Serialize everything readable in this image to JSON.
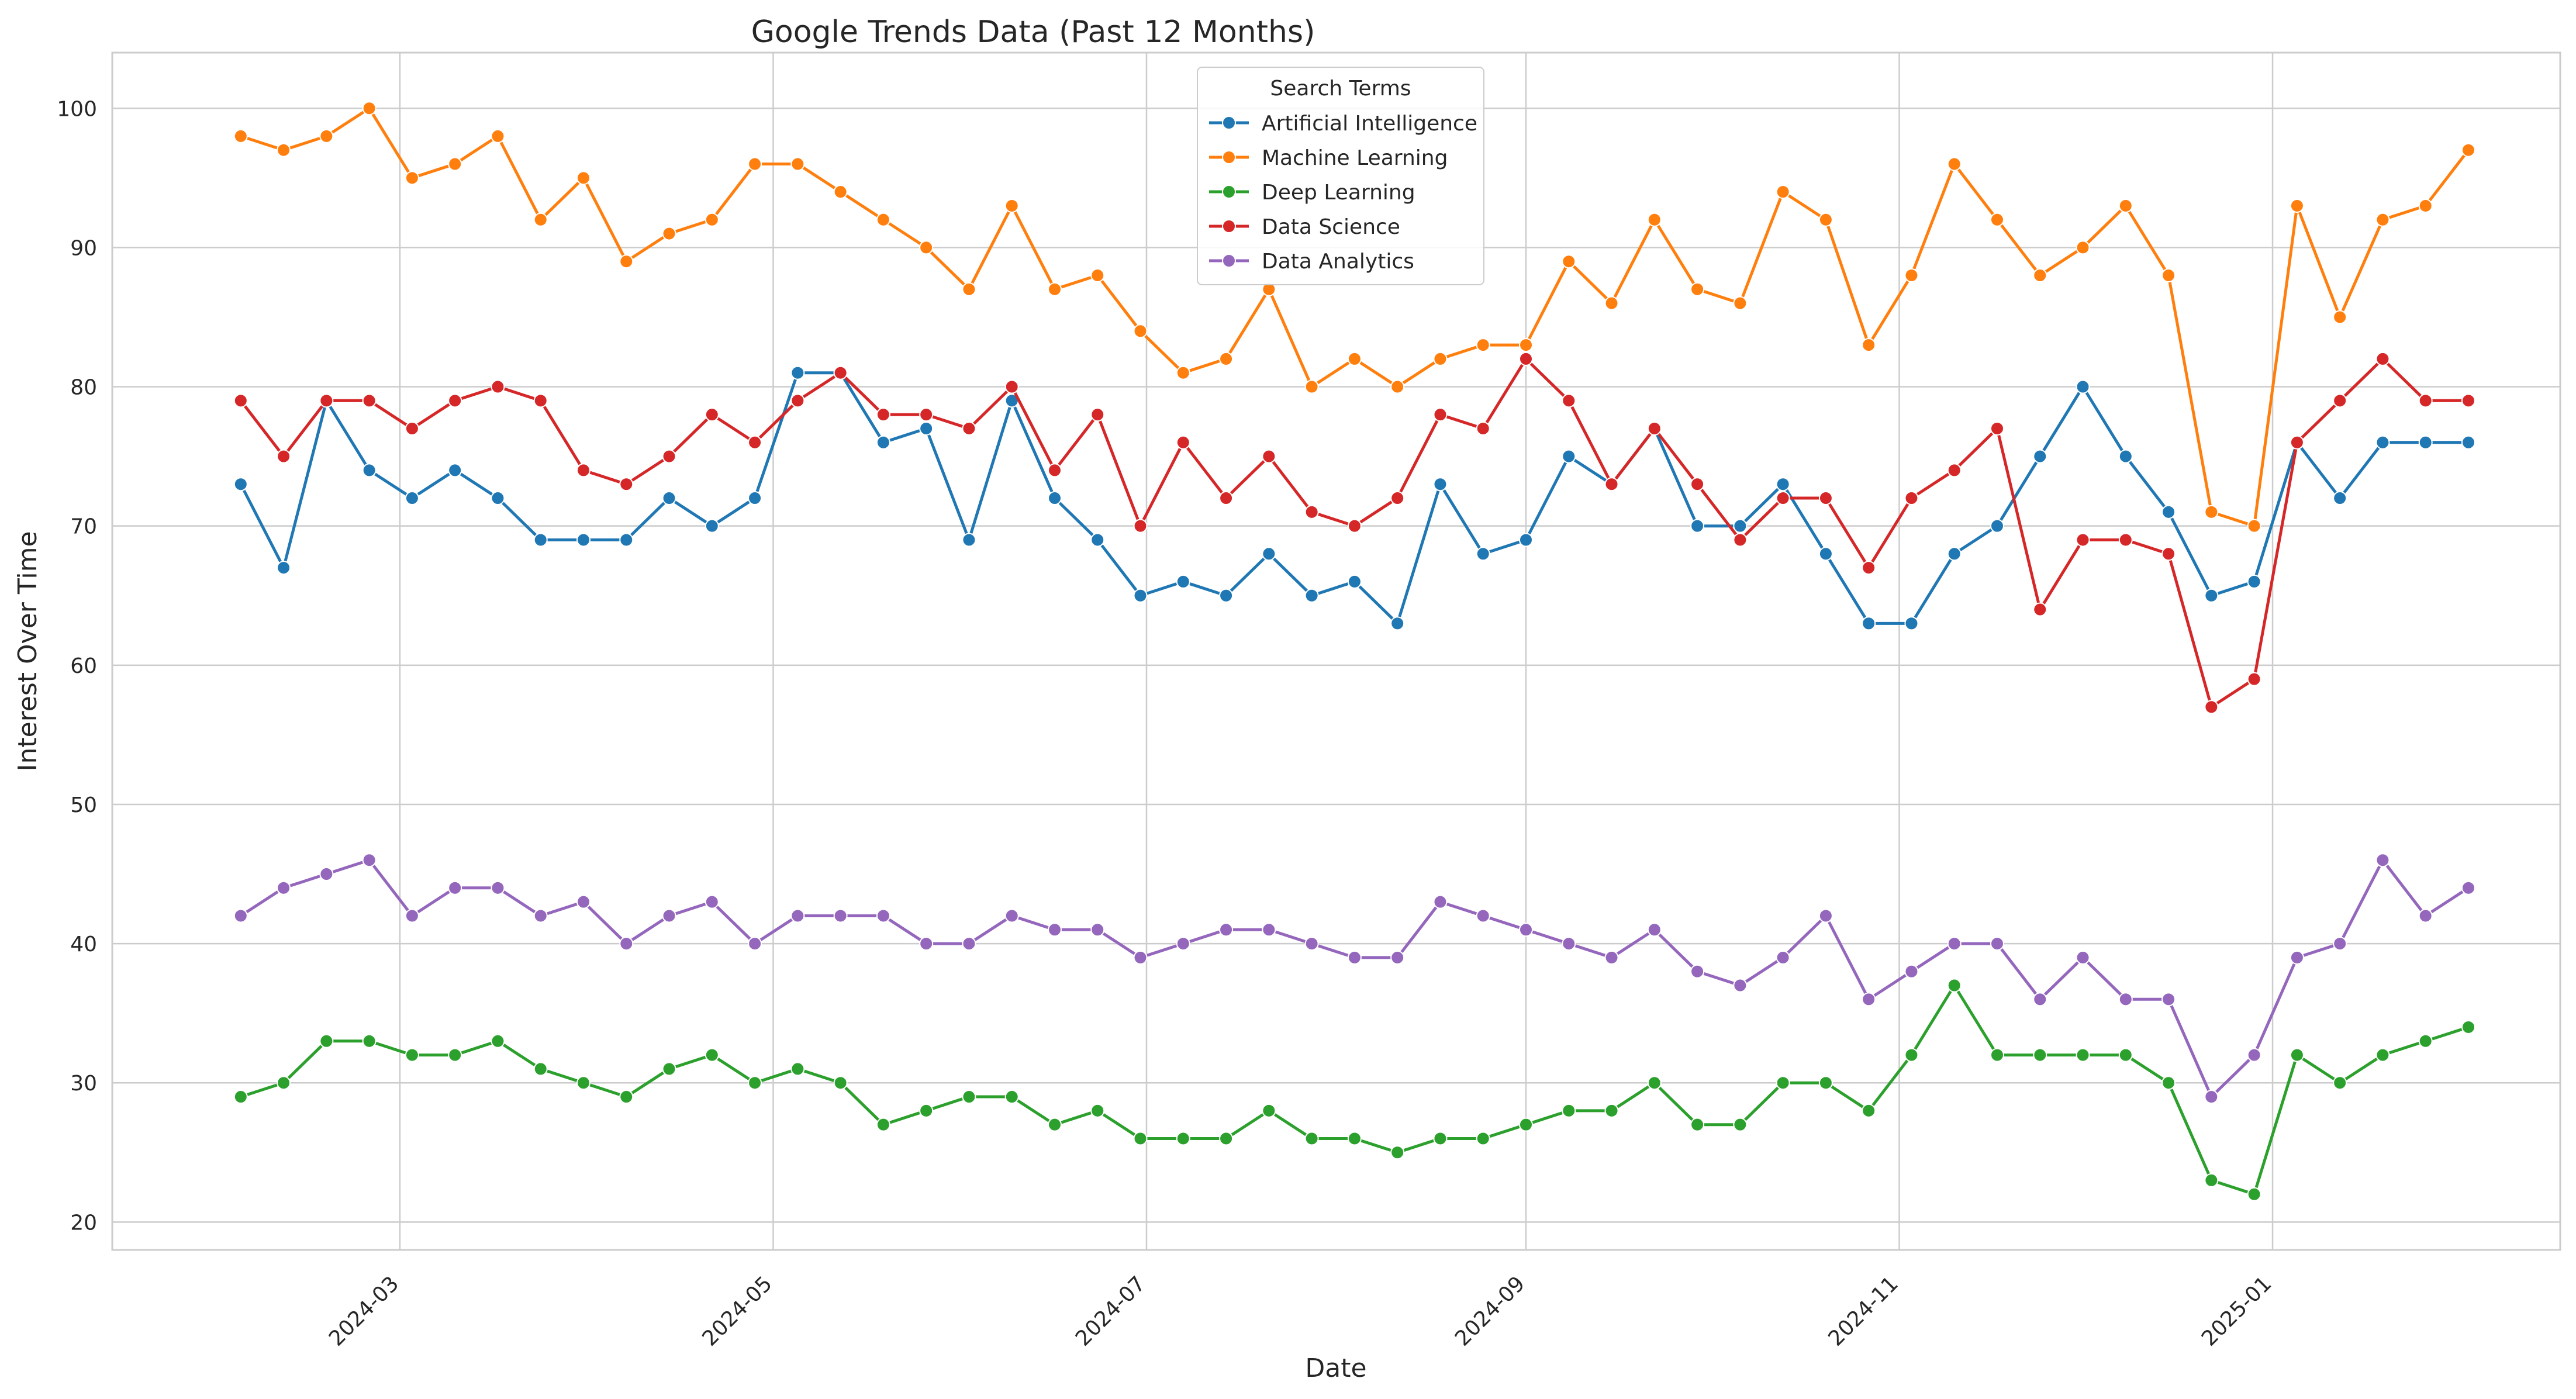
{
  "chart_data": {
    "type": "line",
    "title": "Google Trends Data (Past 12 Months)",
    "xlabel": "Date",
    "ylabel": "Interest Over Time",
    "ylim": [
      18,
      104
    ],
    "xlim": [
      "2024-01-14",
      "2025-02-17"
    ],
    "grid": true,
    "legend": {
      "title": "Search Terms",
      "placement": "top-center"
    },
    "x_ticks": [
      "2024-03-01",
      "2024-05-01",
      "2024-07-01",
      "2024-09-01",
      "2024-11-01",
      "2025-01-01"
    ],
    "x_tick_labels": [
      "2024-03",
      "2024-05",
      "2024-07",
      "2024-09",
      "2024-11",
      "2025-01"
    ],
    "y_ticks": [
      20,
      30,
      40,
      50,
      60,
      70,
      80,
      90,
      100
    ],
    "y_tick_labels": [
      "20",
      "30",
      "40",
      "50",
      "60",
      "70",
      "80",
      "90",
      "100"
    ],
    "x": [
      "2024-02-04",
      "2024-02-11",
      "2024-02-18",
      "2024-02-25",
      "2024-03-03",
      "2024-03-10",
      "2024-03-17",
      "2024-03-24",
      "2024-03-31",
      "2024-04-07",
      "2024-04-14",
      "2024-04-21",
      "2024-04-28",
      "2024-05-05",
      "2024-05-12",
      "2024-05-19",
      "2024-05-26",
      "2024-06-02",
      "2024-06-09",
      "2024-06-16",
      "2024-06-23",
      "2024-06-30",
      "2024-07-07",
      "2024-07-14",
      "2024-07-21",
      "2024-07-28",
      "2024-08-04",
      "2024-08-11",
      "2024-08-18",
      "2024-08-25",
      "2024-09-01",
      "2024-09-08",
      "2024-09-15",
      "2024-09-22",
      "2024-09-29",
      "2024-10-06",
      "2024-10-13",
      "2024-10-20",
      "2024-10-27",
      "2024-11-03",
      "2024-11-10",
      "2024-11-17",
      "2024-11-24",
      "2024-12-01",
      "2024-12-08",
      "2024-12-15",
      "2024-12-22",
      "2024-12-29",
      "2025-01-05",
      "2025-01-12",
      "2025-01-19",
      "2025-01-26",
      "2025-02-02"
    ],
    "series": [
      {
        "name": "Artificial Intelligence",
        "color": "#1f77b4",
        "values": [
          73,
          67,
          79,
          74,
          72,
          74,
          72,
          69,
          69,
          69,
          72,
          70,
          72,
          81,
          81,
          76,
          77,
          69,
          79,
          72,
          69,
          65,
          66,
          65,
          68,
          65,
          66,
          63,
          73,
          68,
          69,
          75,
          73,
          77,
          70,
          70,
          73,
          68,
          63,
          63,
          68,
          70,
          75,
          80,
          75,
          71,
          65,
          66,
          76,
          72,
          76,
          76,
          76
        ]
      },
      {
        "name": "Machine Learning",
        "color": "#ff7f0e",
        "values": [
          98,
          97,
          98,
          100,
          95,
          96,
          98,
          92,
          95,
          89,
          91,
          92,
          96,
          96,
          94,
          92,
          90,
          87,
          93,
          87,
          88,
          84,
          81,
          82,
          87,
          80,
          82,
          80,
          82,
          83,
          83,
          89,
          86,
          92,
          87,
          86,
          94,
          92,
          83,
          88,
          96,
          92,
          88,
          90,
          93,
          88,
          71,
          70,
          93,
          85,
          92,
          93,
          97
        ]
      },
      {
        "name": "Deep Learning",
        "color": "#2ca02c",
        "values": [
          29,
          30,
          33,
          33,
          32,
          32,
          33,
          31,
          30,
          29,
          31,
          32,
          30,
          31,
          30,
          27,
          28,
          29,
          29,
          27,
          28,
          26,
          26,
          26,
          28,
          26,
          26,
          25,
          26,
          26,
          27,
          28,
          28,
          30,
          27,
          27,
          30,
          30,
          28,
          32,
          37,
          32,
          32,
          32,
          32,
          30,
          23,
          22,
          32,
          30,
          32,
          33,
          34
        ]
      },
      {
        "name": "Data Science",
        "color": "#d62728",
        "values": [
          79,
          75,
          79,
          79,
          77,
          79,
          80,
          79,
          74,
          73,
          75,
          78,
          76,
          79,
          81,
          78,
          78,
          77,
          80,
          74,
          78,
          70,
          76,
          72,
          75,
          71,
          70,
          72,
          78,
          77,
          82,
          79,
          73,
          77,
          73,
          69,
          72,
          72,
          67,
          72,
          74,
          77,
          64,
          69,
          69,
          68,
          57,
          59,
          76,
          79,
          82,
          79,
          79
        ]
      },
      {
        "name": "Data Analytics",
        "color": "#9467bd",
        "values": [
          42,
          44,
          45,
          46,
          42,
          44,
          44,
          42,
          43,
          40,
          42,
          43,
          40,
          42,
          42,
          42,
          40,
          40,
          42,
          41,
          41,
          39,
          40,
          41,
          41,
          40,
          39,
          39,
          43,
          42,
          41,
          40,
          39,
          41,
          38,
          37,
          39,
          42,
          36,
          38,
          40,
          40,
          36,
          39,
          36,
          36,
          29,
          32,
          39,
          40,
          46,
          42,
          44
        ]
      }
    ]
  }
}
